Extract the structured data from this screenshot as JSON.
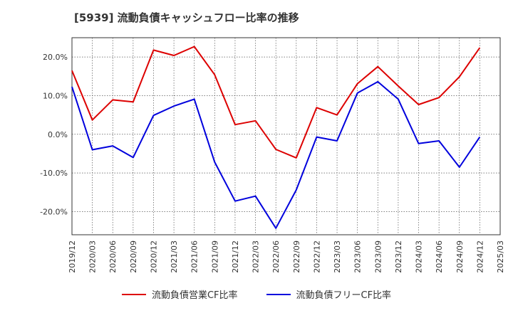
{
  "chart_data": {
    "type": "line",
    "title": "[5939]  流動負債キャッシュフロー比率の推移",
    "x": [
      "2019/12",
      "2020/03",
      "2020/06",
      "2020/09",
      "2020/12",
      "2021/03",
      "2021/06",
      "2021/09",
      "2021/12",
      "2022/03",
      "2022/06",
      "2022/09",
      "2022/12",
      "2023/03",
      "2023/06",
      "2023/09",
      "2023/12",
      "2024/03",
      "2024/06",
      "2024/09",
      "2024/12"
    ],
    "x_ticks": [
      "2019/12",
      "2020/03",
      "2020/06",
      "2020/09",
      "2020/12",
      "2021/03",
      "2021/06",
      "2021/09",
      "2021/12",
      "2022/03",
      "2022/06",
      "2022/09",
      "2022/12",
      "2023/03",
      "2023/06",
      "2023/09",
      "2023/12",
      "2024/03",
      "2024/06",
      "2024/09",
      "2024/12",
      "2025/03"
    ],
    "y_ticks": [
      20,
      10,
      0,
      -10,
      -20
    ],
    "y_tick_labels": [
      "20.0%",
      "10.0%",
      "0.0%",
      "-10.0%",
      "-20.0%"
    ],
    "ylim": [
      -26,
      25
    ],
    "grid": true,
    "legend_position": "bottom",
    "series": [
      {
        "name": "流動負債営業CF比率",
        "color": "#dd0000",
        "values": [
          16.5,
          3.7,
          8.9,
          8.4,
          21.8,
          20.4,
          22.7,
          15.4,
          2.5,
          3.5,
          -3.9,
          -6.1,
          6.9,
          5.0,
          13.1,
          17.5,
          12.5,
          7.7,
          9.5,
          14.9,
          22.4
        ]
      },
      {
        "name": "流動負債フリーCF比率",
        "color": "#0000dd",
        "values": [
          12.3,
          -4.0,
          -3.0,
          -6.0,
          4.9,
          7.3,
          9.1,
          -7.2,
          -17.3,
          -16.0,
          -24.3,
          -14.4,
          -0.7,
          -1.7,
          10.7,
          13.6,
          9.1,
          -2.4,
          -1.7,
          -8.5,
          -0.7
        ]
      }
    ]
  }
}
